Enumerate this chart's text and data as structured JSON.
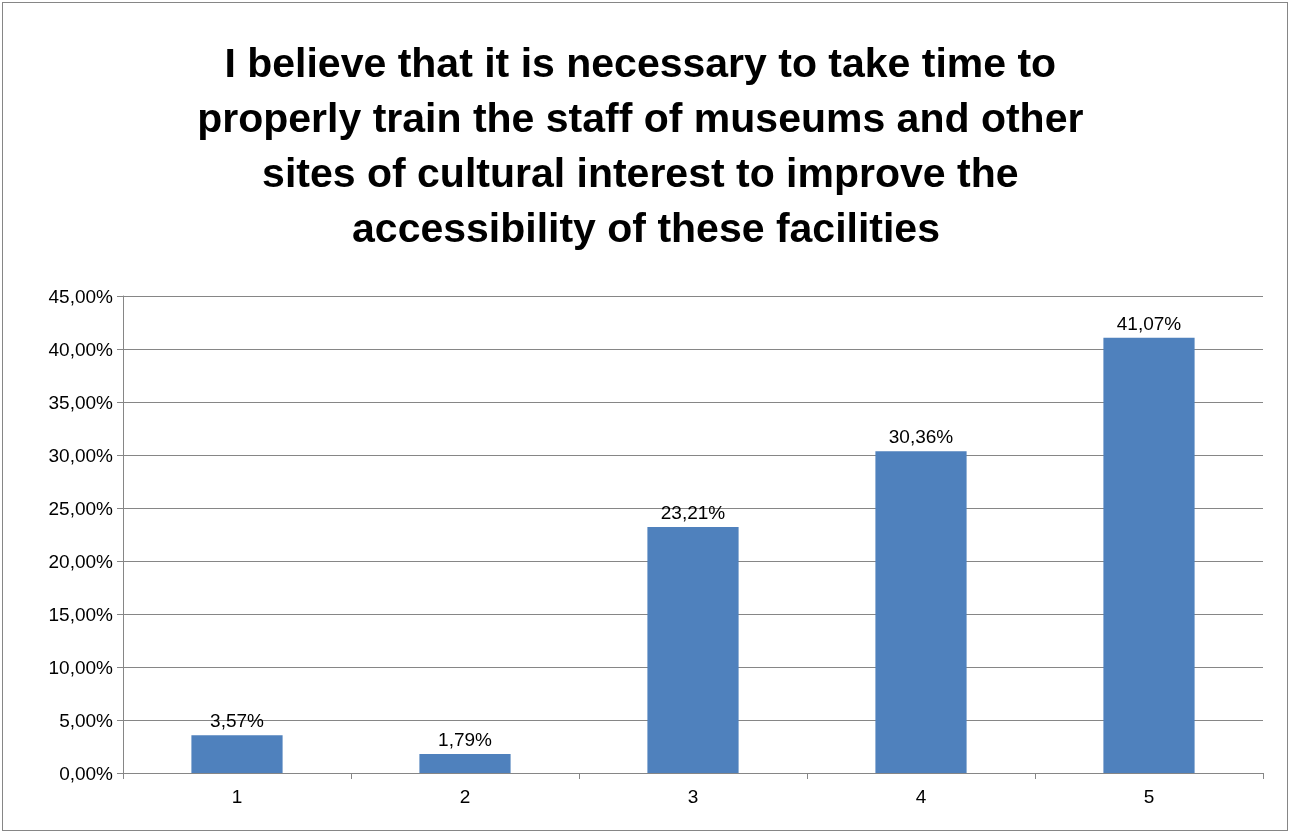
{
  "chart_data": {
    "type": "bar",
    "title": "I believe that it is necessary to take time to properly train the staff of museums and other sites of cultural interest to improve the accessibility of these facilities",
    "categories": [
      "1",
      "2",
      "3",
      "4",
      "5"
    ],
    "values": [
      3.57,
      1.79,
      23.21,
      30.36,
      41.07
    ],
    "value_labels": [
      "3,57%",
      "1,79%",
      "23,21%",
      "30,36%",
      "41,07%"
    ],
    "color": "#4f81bd",
    "ylim": [
      0,
      45
    ],
    "yticks": [
      {
        "value": 0,
        "label": "0,00%"
      },
      {
        "value": 5,
        "label": "5,00%"
      },
      {
        "value": 10,
        "label": "10,00%"
      },
      {
        "value": 15,
        "label": "15,00%"
      },
      {
        "value": 20,
        "label": "20,00%"
      },
      {
        "value": 25,
        "label": "25,00%"
      },
      {
        "value": 30,
        "label": "30,00%"
      },
      {
        "value": 35,
        "label": "35,00%"
      },
      {
        "value": 40,
        "label": "40,00%"
      },
      {
        "value": 45,
        "label": "45,00%"
      }
    ],
    "grid": "y",
    "legend": false
  }
}
